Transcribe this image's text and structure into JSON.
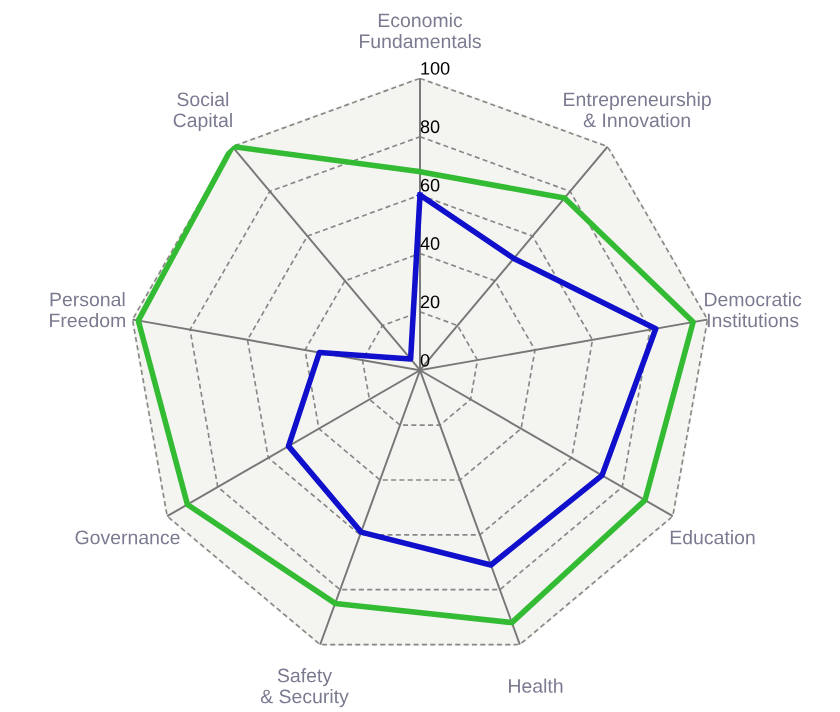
{
  "chart_data": {
    "type": "radar",
    "categories": [
      "Economic\nFundamentals",
      "Entrepreneurship\n& Innovation",
      "Democratic\nInstitutions",
      "Education",
      "Health",
      "Safety\n& Security",
      "Governance",
      "Personal\nFreedom",
      "Social\nCapital"
    ],
    "series": [
      {
        "color": "#33bb33",
        "values": [
          68,
          77,
          95,
          89,
          92,
          85,
          92,
          98,
          100
        ]
      },
      {
        "color": "#1010cc",
        "values": [
          60,
          50,
          82,
          72,
          71,
          59,
          52,
          35,
          5
        ]
      }
    ],
    "ylim": [
      0,
      100
    ],
    "yticks": [
      0,
      20,
      40,
      60,
      80,
      100
    ],
    "grid": true,
    "marker": "none"
  }
}
